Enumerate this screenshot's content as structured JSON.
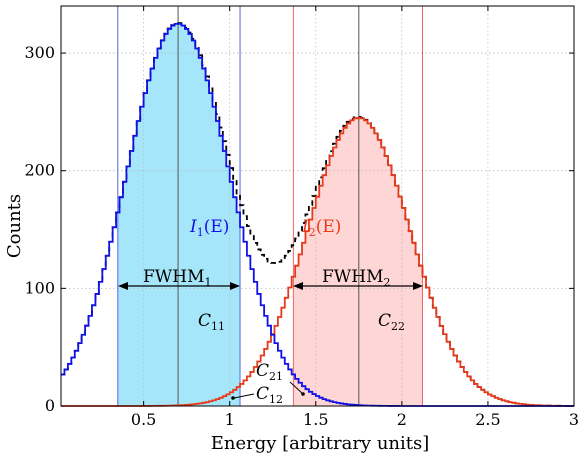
{
  "chart_data": {
    "type": "line",
    "xlabel": "Energy [arbitrary units]",
    "ylabel": "Counts",
    "xlim": [
      0.02,
      3.0
    ],
    "ylim": [
      0,
      340
    ],
    "xticks": [
      "0.5",
      "1",
      "1.5",
      "2",
      "2.5",
      "3"
    ],
    "xtick_values": [
      0.5,
      1,
      1.5,
      2,
      2.5,
      3
    ],
    "yticks": [
      "0",
      "100",
      "200",
      "300"
    ],
    "ytick_values": [
      0,
      100,
      200,
      300
    ],
    "grid": true,
    "bin_width": 0.02,
    "series": [
      {
        "name": "I1(E)",
        "style": "step",
        "color": "#1010e8",
        "peak_center": 0.7,
        "peak_counts": 325,
        "fwhm_bounds": [
          0.35,
          1.06
        ],
        "fill_color": "#a6e6fa",
        "center_line": 0.7
      },
      {
        "name": "I2(E)",
        "style": "step",
        "color": "#e83a1a",
        "peak_center": 1.75,
        "peak_counts": 245,
        "fwhm_bounds": [
          1.37,
          2.12
        ],
        "fill_color": "#ffd6d6",
        "center_line": 1.75
      },
      {
        "name": "",
        "style": "dashed-step",
        "color": "#000000",
        "description_of": "sum of both peaks"
      }
    ],
    "annotations": {
      "i1_label": "I",
      "i1_sub": "1",
      "i1_arg": "(E)",
      "i2_label": "I",
      "i2_sub": "2",
      "i2_arg": "(E)",
      "fwhm1": "FWHM",
      "fwhm1_sub": "1",
      "fwhm2": "FWHM",
      "fwhm2_sub": "2",
      "c11": "C",
      "c11_sub": "11",
      "c22": "C",
      "c22_sub": "22",
      "c21": "C",
      "c21_sub": "21",
      "c12": "C",
      "c12_sub": "12"
    },
    "colors": {
      "blue_line": "#1010e8",
      "red_line": "#e83a1a",
      "blue_fill": "#a6e6fa",
      "red_fill": "#ffd6d6",
      "blue_bound": "#5566dd",
      "red_bound": "#ee6666",
      "center": "#555555"
    }
  }
}
